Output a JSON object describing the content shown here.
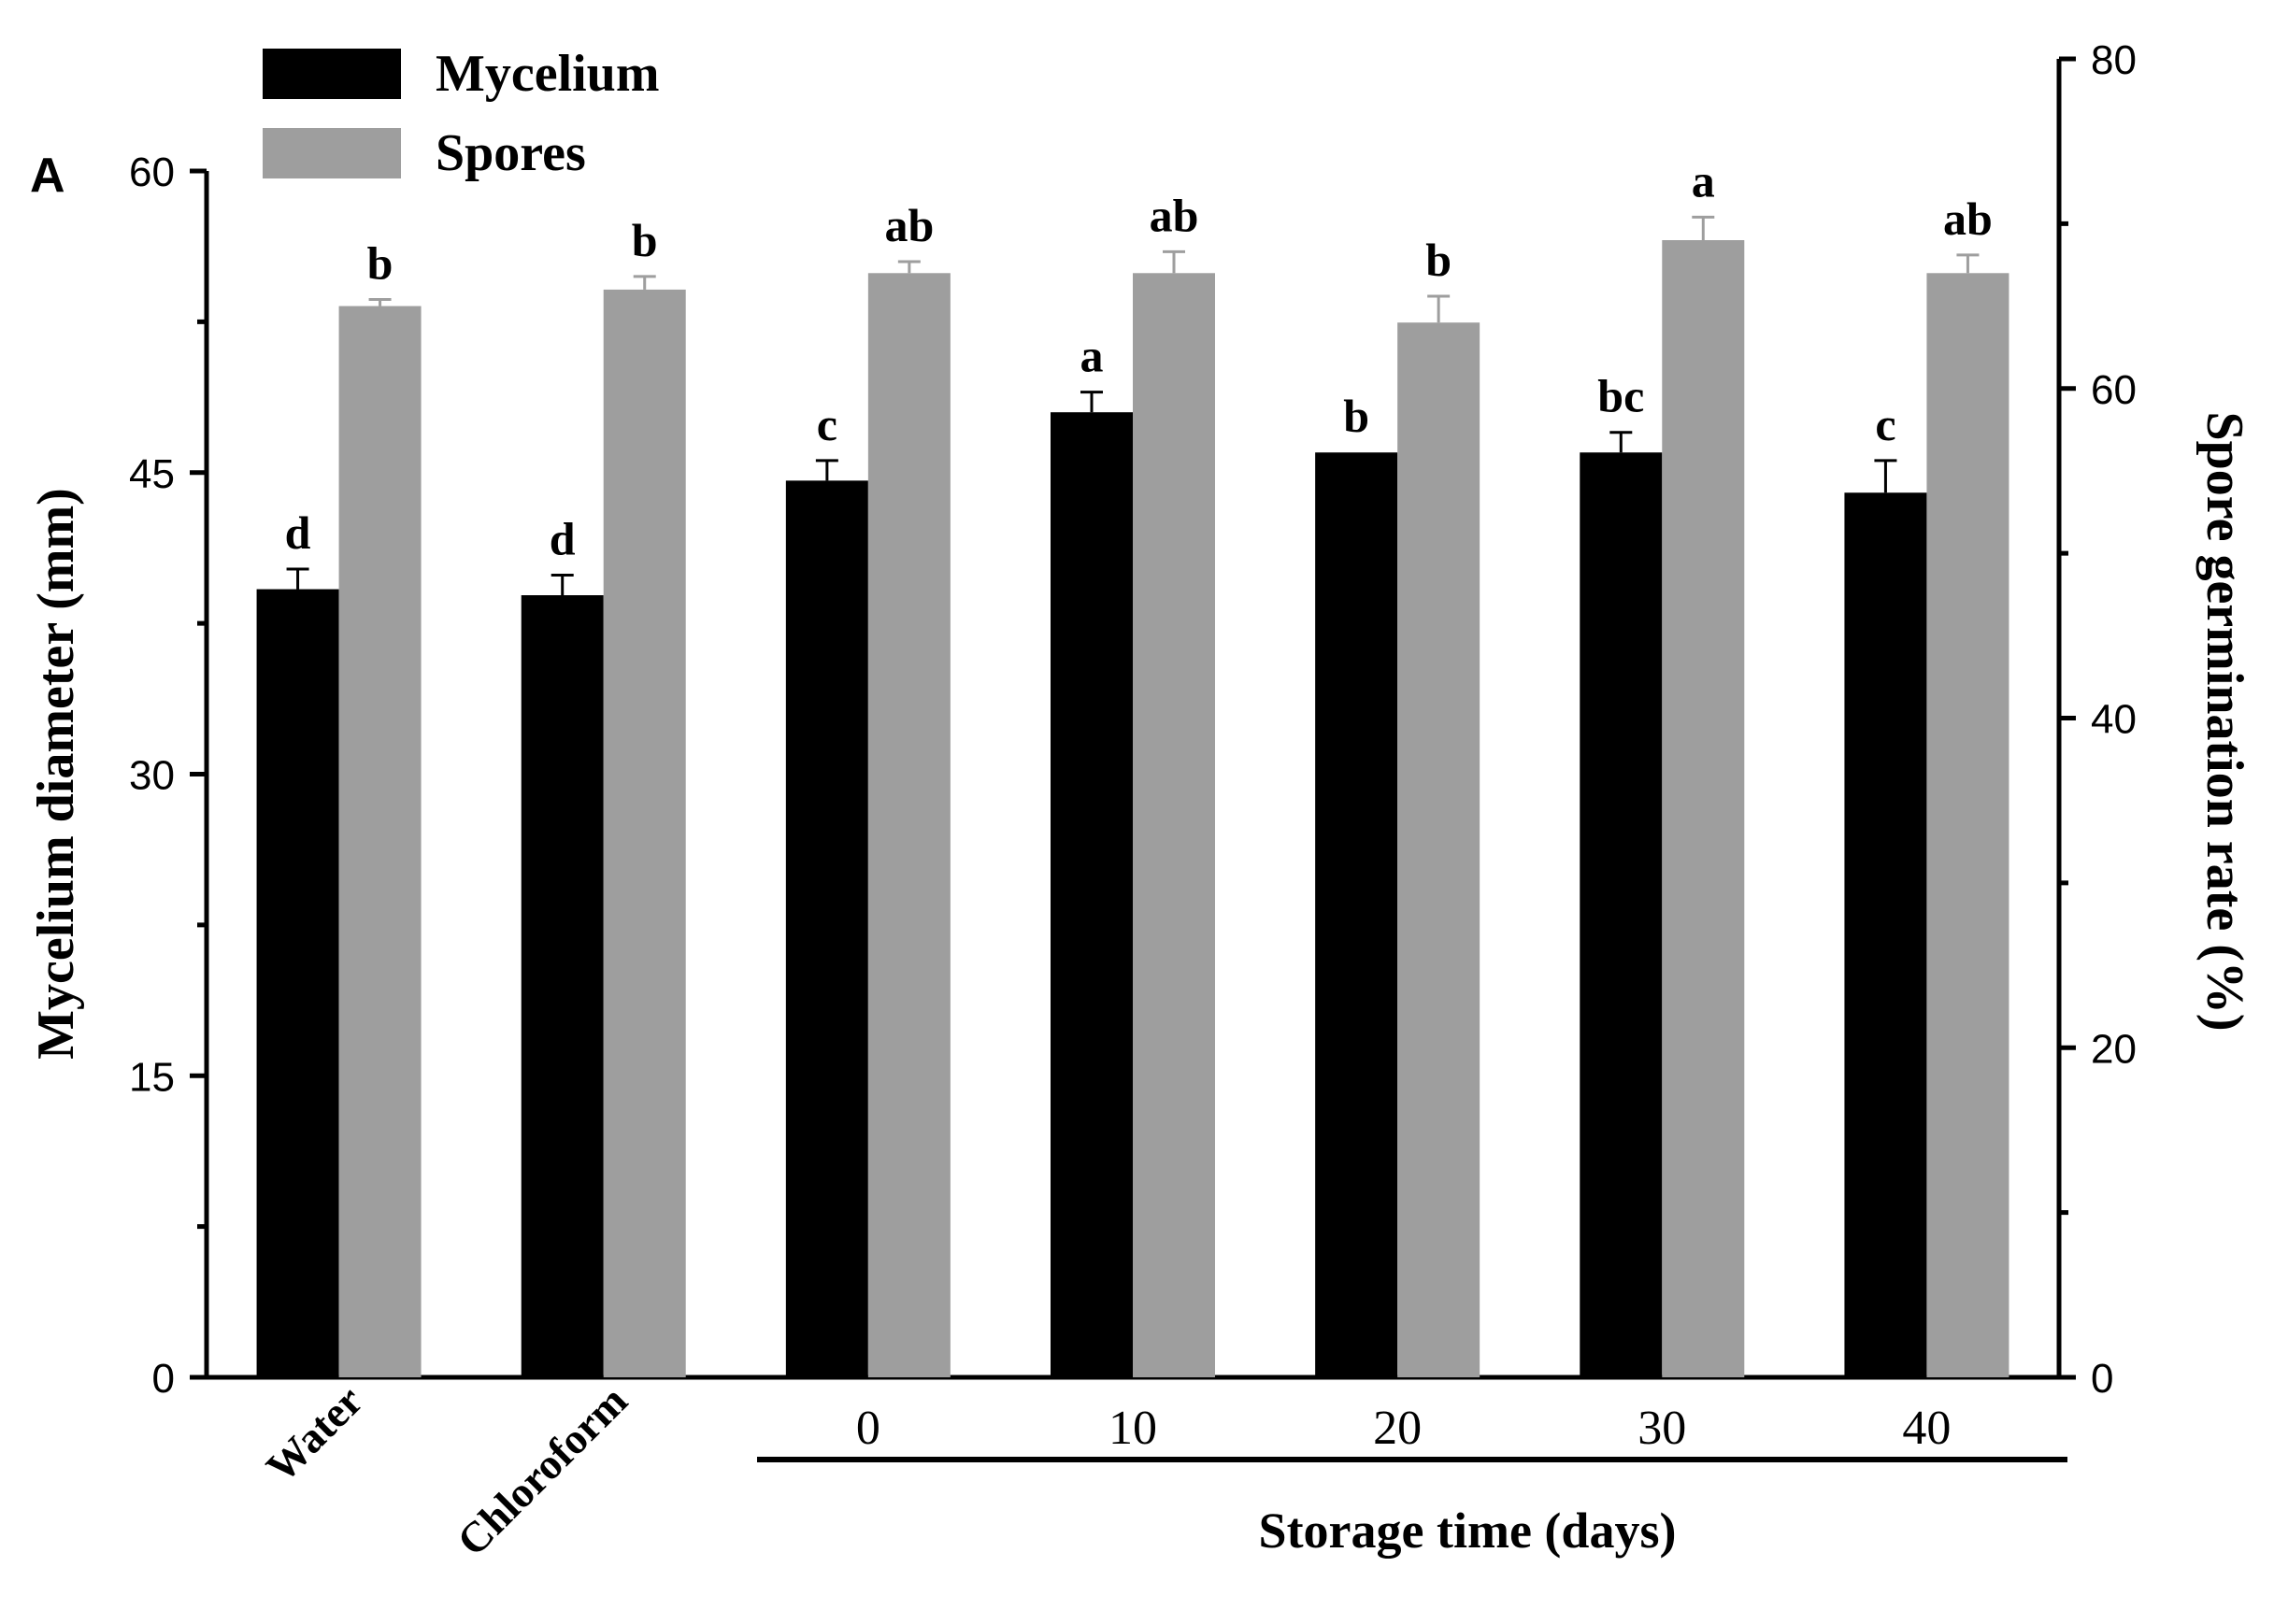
{
  "chart_data": {
    "type": "bar",
    "panel_label": "A",
    "categories": [
      "Water",
      "Chloroform",
      "0",
      "10",
      "20",
      "30",
      "40"
    ],
    "group_label": "Storage time (days)",
    "group_categories": [
      "0",
      "10",
      "20",
      "30",
      "40"
    ],
    "series": [
      {
        "name": "Mycelium",
        "axis": "left",
        "color": "#000000",
        "values": [
          39.2,
          38.9,
          44.6,
          48.0,
          46.0,
          46.0,
          44.0
        ],
        "errors": [
          1.0,
          1.0,
          1.0,
          1.0,
          0.0,
          1.0,
          1.6
        ],
        "letters": [
          "d",
          "d",
          "c",
          "a",
          "b",
          "bc",
          "c"
        ]
      },
      {
        "name": "Spores",
        "axis": "right",
        "color": "#9e9e9e",
        "values": [
          65.0,
          66.0,
          67.0,
          67.0,
          64.0,
          69.0,
          67.0
        ],
        "errors": [
          0.4,
          0.8,
          0.7,
          1.3,
          1.6,
          1.4,
          1.1
        ],
        "letters": [
          "b",
          "b",
          "ab",
          "ab",
          "b",
          "a",
          "ab"
        ]
      }
    ],
    "y_left": {
      "label": "Mycelium diameter (mm)",
      "ylim": [
        0,
        60
      ],
      "ticks": [
        "0",
        "15",
        "30",
        "45",
        "60"
      ]
    },
    "y_right": {
      "label": "Spore germination rate (%)",
      "ylim": [
        0,
        80
      ],
      "ticks": [
        "0",
        "20",
        "40",
        "60",
        "80"
      ]
    },
    "legend": {
      "position": "top-left"
    },
    "grid": false
  }
}
